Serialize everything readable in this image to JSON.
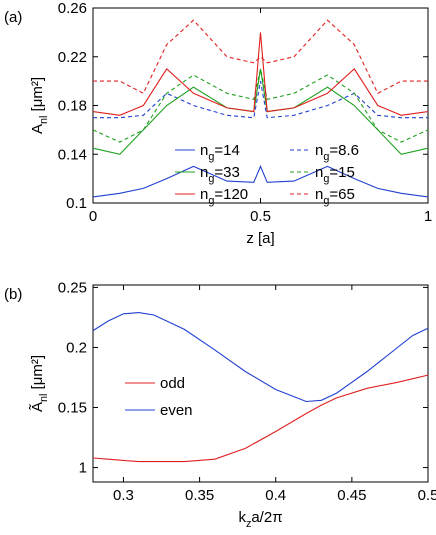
{
  "chart_data": [
    {
      "type": "line",
      "panel_label": "(a)",
      "xlabel": "z [a]",
      "ylabel": "Anl [μm²]",
      "x": [
        0,
        0.08,
        0.15,
        0.22,
        0.3,
        0.4,
        0.48,
        0.5,
        0.52,
        0.6,
        0.7,
        0.78,
        0.85,
        0.92,
        1
      ],
      "xlim": [
        0,
        1
      ],
      "xticks": [
        0,
        0.5,
        1
      ],
      "ylim": [
        0.1,
        0.26
      ],
      "yticks": [
        0.26,
        0.22,
        0.18,
        0.14,
        0.1
      ],
      "series": [
        {
          "name": "ng=14",
          "color": "#2040d0",
          "dash": false,
          "values": [
            0.105,
            0.108,
            0.112,
            0.12,
            0.13,
            0.118,
            0.117,
            0.13,
            0.117,
            0.118,
            0.13,
            0.12,
            0.112,
            0.108,
            0.105
          ]
        },
        {
          "name": "ng=8.6",
          "color": "#2040d0",
          "dash": true,
          "values": [
            0.17,
            0.17,
            0.172,
            0.19,
            0.18,
            0.172,
            0.17,
            0.2,
            0.17,
            0.172,
            0.18,
            0.19,
            0.172,
            0.17,
            0.17
          ]
        },
        {
          "name": "ng=33",
          "color": "#20a020",
          "dash": false,
          "values": [
            0.145,
            0.14,
            0.16,
            0.18,
            0.195,
            0.178,
            0.175,
            0.21,
            0.175,
            0.178,
            0.195,
            0.18,
            0.16,
            0.14,
            0.145
          ]
        },
        {
          "name": "ng=15",
          "color": "#20a020",
          "dash": true,
          "values": [
            0.16,
            0.15,
            0.16,
            0.19,
            0.205,
            0.19,
            0.185,
            0.21,
            0.185,
            0.19,
            0.205,
            0.19,
            0.16,
            0.15,
            0.16
          ]
        },
        {
          "name": "ng=120",
          "color": "#e02020",
          "dash": false,
          "values": [
            0.175,
            0.172,
            0.18,
            0.21,
            0.19,
            0.178,
            0.175,
            0.24,
            0.175,
            0.178,
            0.19,
            0.21,
            0.18,
            0.172,
            0.175
          ]
        },
        {
          "name": "ng=65",
          "color": "#e02020",
          "dash": true,
          "values": [
            0.2,
            0.2,
            0.19,
            0.23,
            0.25,
            0.22,
            0.215,
            0.22,
            0.215,
            0.22,
            0.25,
            0.23,
            0.19,
            0.2,
            0.2
          ]
        }
      ]
    },
    {
      "type": "line",
      "panel_label": "(b)",
      "xlabel": "kza/2π",
      "ylabel": "Ãnl [μm²]",
      "x": [
        0.28,
        0.29,
        0.3,
        0.31,
        0.32,
        0.34,
        0.36,
        0.38,
        0.4,
        0.42,
        0.43,
        0.44,
        0.46,
        0.48,
        0.49,
        0.5
      ],
      "xlim": [
        0.28,
        0.5
      ],
      "xticks": [
        0.3,
        0.35,
        0.4,
        0.45,
        0.5
      ],
      "ylim": [
        0.088,
        0.252
      ],
      "yticks": [
        0.25,
        0.2,
        0.15,
        {
          "value": 0.1,
          "label": "1"
        }
      ],
      "series": [
        {
          "name": "odd",
          "color": "#e02020",
          "dash": false,
          "values": [
            0.108,
            0.107,
            0.106,
            0.105,
            0.105,
            0.105,
            0.107,
            0.116,
            0.13,
            0.145,
            0.152,
            0.158,
            0.166,
            0.171,
            0.174,
            0.177
          ]
        },
        {
          "name": "even",
          "color": "#2040d0",
          "dash": false,
          "values": [
            0.214,
            0.222,
            0.228,
            0.229,
            0.227,
            0.215,
            0.198,
            0.18,
            0.165,
            0.155,
            0.156,
            0.162,
            0.18,
            0.2,
            0.21,
            0.216
          ]
        }
      ]
    }
  ]
}
